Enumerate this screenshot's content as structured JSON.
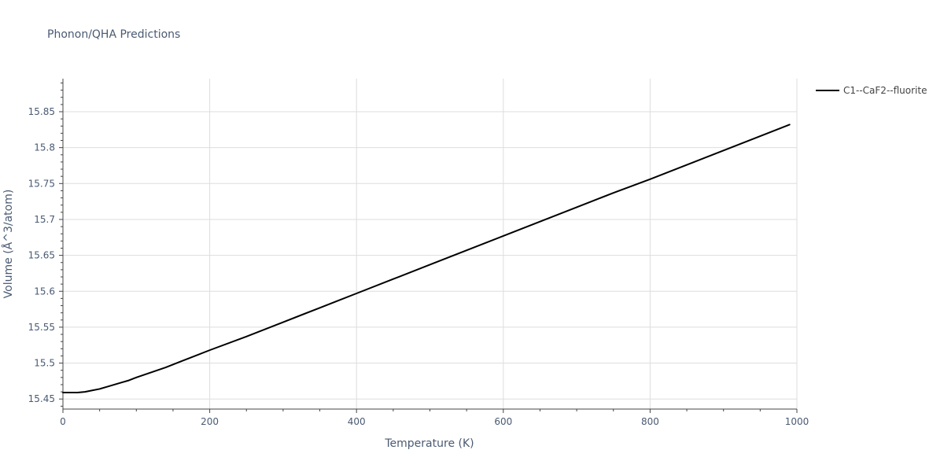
{
  "chart_data": {
    "type": "line",
    "title": "Phonon/QHA Predictions",
    "xlabel": "Temperature (K)",
    "ylabel": "Volume (Å^3/atom)",
    "xlim": [
      0,
      1000
    ],
    "ylim": [
      15.436,
      15.896
    ],
    "x_ticks": [
      0,
      200,
      400,
      600,
      800,
      1000
    ],
    "x_tick_labels": [
      "0",
      "200",
      "400",
      "600",
      "800",
      "1000"
    ],
    "y_ticks": [
      15.45,
      15.5,
      15.55,
      15.6,
      15.65,
      15.7,
      15.75,
      15.8,
      15.85
    ],
    "y_tick_labels": [
      "15.45",
      "15.5",
      "15.55",
      "15.6",
      "15.65",
      "15.7",
      "15.75",
      "15.8",
      "15.85"
    ],
    "grid": true,
    "legend_position": "top-right",
    "series": [
      {
        "name": "C1--CaF2--fluorite",
        "color": "#000000",
        "x": [
          0,
          10,
          20,
          30,
          40,
          50,
          60,
          70,
          80,
          90,
          100,
          120,
          140,
          160,
          180,
          200,
          250,
          300,
          350,
          400,
          450,
          500,
          550,
          600,
          650,
          700,
          750,
          800,
          850,
          900,
          950,
          990
        ],
        "y": [
          15.459,
          15.459,
          15.459,
          15.46,
          15.462,
          15.464,
          15.467,
          15.47,
          15.473,
          15.476,
          15.48,
          15.487,
          15.494,
          15.502,
          15.51,
          15.518,
          15.537,
          15.557,
          15.577,
          15.597,
          15.617,
          15.637,
          15.657,
          15.677,
          15.697,
          15.717,
          15.737,
          15.756,
          15.776,
          15.796,
          15.816,
          15.832
        ]
      }
    ]
  }
}
